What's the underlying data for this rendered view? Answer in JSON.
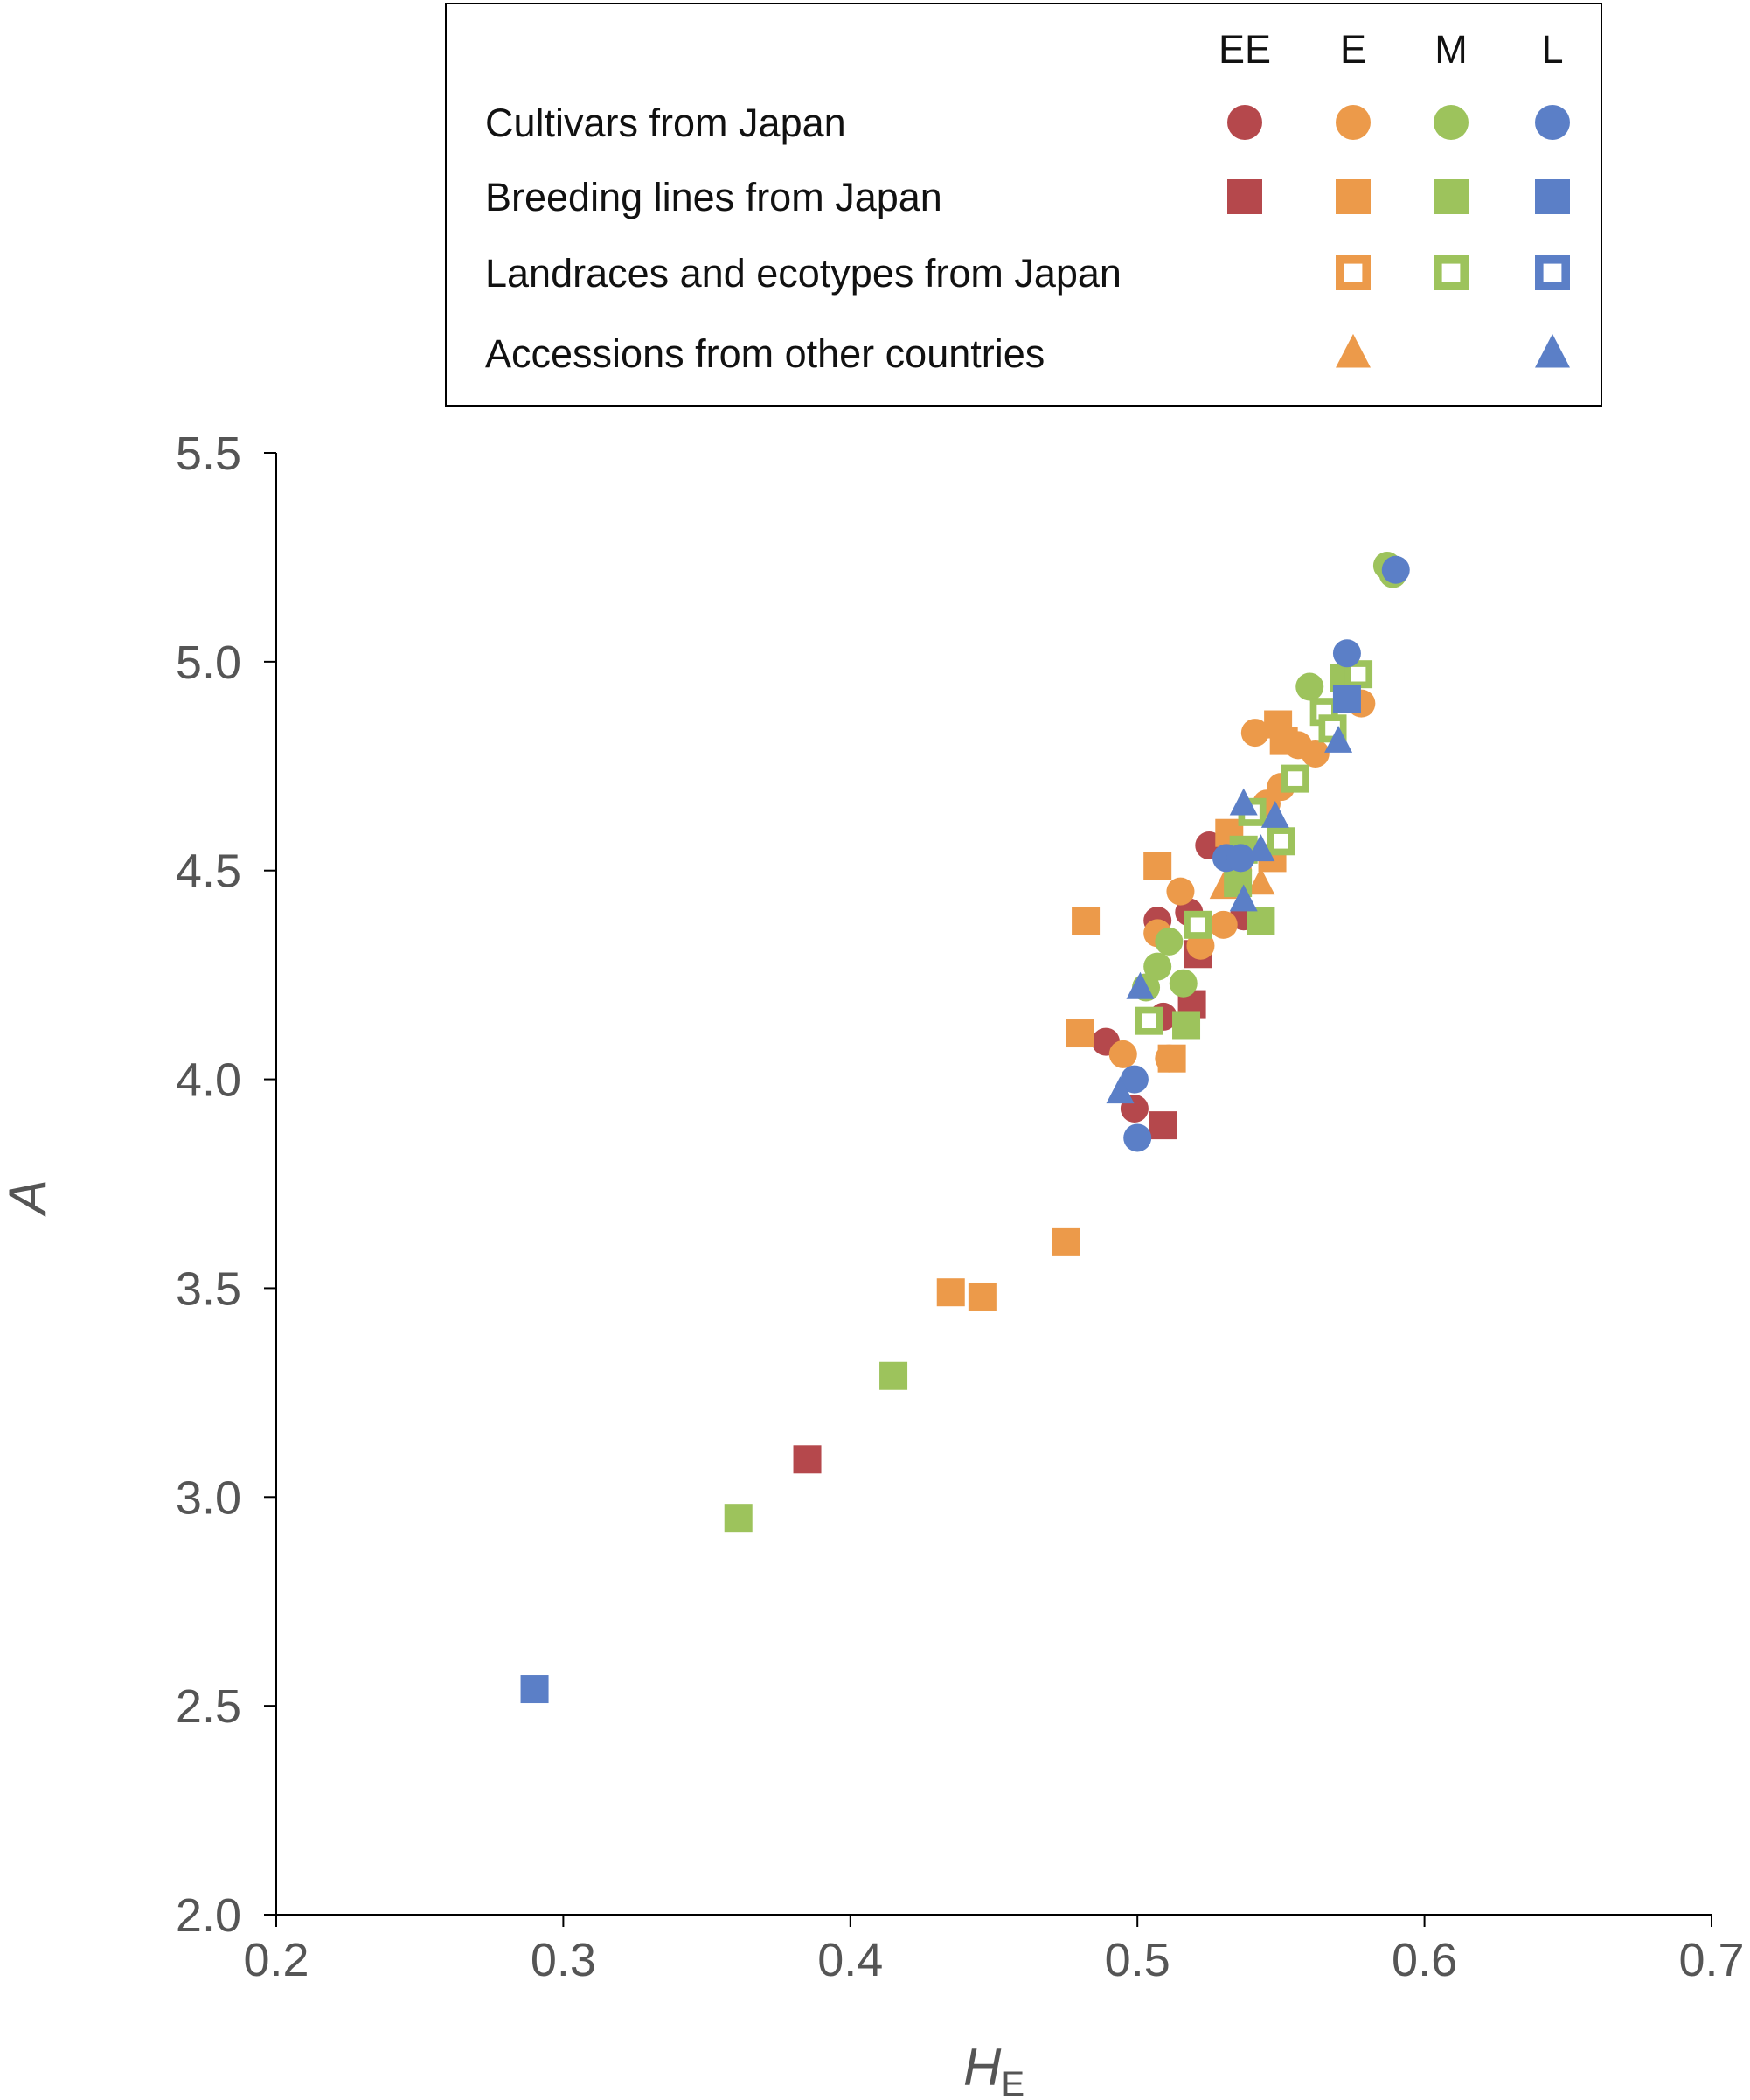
{
  "chart_data": {
    "type": "scatter",
    "xlabel": "H",
    "xlabel_subscript": "E",
    "ylabel": "A",
    "xlim": [
      0.2,
      0.7
    ],
    "ylim": [
      2.0,
      5.5
    ],
    "xticks": [
      "0.2",
      "0.3",
      "0.4",
      "0.5",
      "0.6",
      "0.7"
    ],
    "yticks": [
      "2.0",
      "2.5",
      "3.0",
      "3.5",
      "4.0",
      "4.5",
      "5.0",
      "5.5"
    ],
    "legend": {
      "placement": "top",
      "columns": [
        "EE",
        "E",
        "M",
        "L"
      ],
      "rows": [
        {
          "label": "Cultivars from Japan",
          "marker": "circle",
          "columns": [
            true,
            true,
            true,
            true
          ]
        },
        {
          "label": "Breeding lines from Japan",
          "marker": "square",
          "columns": [
            true,
            true,
            true,
            true
          ]
        },
        {
          "label": "Landraces and ecotypes from Japan",
          "marker": "open-square",
          "columns": [
            false,
            true,
            true,
            true
          ]
        },
        {
          "label": "Accessions from other countries",
          "marker": "triangle",
          "columns": [
            false,
            true,
            false,
            true
          ]
        }
      ]
    },
    "colors": {
      "EE": "#b5484c",
      "E": "#ec9a4a",
      "M": "#9dc35c",
      "L": "#5b7fc7"
    },
    "series": [
      {
        "group": "EE",
        "marker": "circle",
        "points": [
          [
            0.489,
            4.09
          ],
          [
            0.499,
            3.93
          ],
          [
            0.507,
            4.38
          ],
          [
            0.509,
            4.15
          ],
          [
            0.518,
            4.4
          ],
          [
            0.525,
            4.56
          ],
          [
            0.537,
            4.39
          ]
        ]
      },
      {
        "group": "EE",
        "marker": "square",
        "points": [
          [
            0.385,
            3.09
          ],
          [
            0.509,
            3.89
          ],
          [
            0.519,
            4.18
          ],
          [
            0.521,
            4.3
          ]
        ]
      },
      {
        "group": "E",
        "marker": "circle",
        "points": [
          [
            0.495,
            4.06
          ],
          [
            0.507,
            4.35
          ],
          [
            0.511,
            4.05
          ],
          [
            0.515,
            4.45
          ],
          [
            0.522,
            4.32
          ],
          [
            0.53,
            4.37
          ],
          [
            0.535,
            4.5
          ],
          [
            0.541,
            4.83
          ],
          [
            0.545,
            4.66
          ],
          [
            0.55,
            4.7
          ],
          [
            0.556,
            4.8
          ],
          [
            0.562,
            4.78
          ],
          [
            0.578,
            4.9
          ]
        ]
      },
      {
        "group": "E",
        "marker": "square",
        "points": [
          [
            0.435,
            3.49
          ],
          [
            0.446,
            3.48
          ],
          [
            0.475,
            3.61
          ],
          [
            0.482,
            4.38
          ],
          [
            0.48,
            4.11
          ],
          [
            0.507,
            4.51
          ],
          [
            0.512,
            4.05
          ],
          [
            0.532,
            4.59
          ],
          [
            0.549,
            4.85
          ],
          [
            0.551,
            4.81
          ],
          [
            0.547,
            4.53
          ]
        ]
      },
      {
        "group": "E",
        "marker": "triangle",
        "points": [
          [
            0.53,
            4.46
          ],
          [
            0.543,
            4.47
          ]
        ]
      },
      {
        "group": "M",
        "marker": "circle",
        "points": [
          [
            0.503,
            4.22
          ],
          [
            0.507,
            4.27
          ],
          [
            0.511,
            4.33
          ],
          [
            0.516,
            4.23
          ],
          [
            0.56,
            4.94
          ],
          [
            0.587,
            5.23
          ],
          [
            0.589,
            5.21
          ]
        ]
      },
      {
        "group": "M",
        "marker": "square",
        "points": [
          [
            0.361,
            2.95
          ],
          [
            0.415,
            3.29
          ],
          [
            0.517,
            4.13
          ],
          [
            0.535,
            4.47
          ],
          [
            0.537,
            4.55
          ],
          [
            0.543,
            4.38
          ],
          [
            0.572,
            4.96
          ]
        ]
      },
      {
        "group": "M",
        "marker": "open-square",
        "points": [
          [
            0.504,
            4.14
          ],
          [
            0.521,
            4.37
          ],
          [
            0.54,
            4.64
          ],
          [
            0.55,
            4.57
          ],
          [
            0.555,
            4.72
          ],
          [
            0.565,
            4.88
          ],
          [
            0.568,
            4.84
          ],
          [
            0.577,
            4.97
          ]
        ]
      },
      {
        "group": "L",
        "marker": "circle",
        "points": [
          [
            0.499,
            4.0
          ],
          [
            0.5,
            3.86
          ],
          [
            0.531,
            4.53
          ],
          [
            0.536,
            4.53
          ],
          [
            0.573,
            5.02
          ],
          [
            0.59,
            5.22
          ]
        ]
      },
      {
        "group": "L",
        "marker": "square",
        "points": [
          [
            0.29,
            2.54
          ],
          [
            0.573,
            4.91
          ]
        ]
      },
      {
        "group": "L",
        "marker": "triangle",
        "points": [
          [
            0.494,
            3.97
          ],
          [
            0.501,
            4.22
          ],
          [
            0.537,
            4.66
          ],
          [
            0.537,
            4.43
          ],
          [
            0.543,
            4.55
          ],
          [
            0.548,
            4.63
          ],
          [
            0.57,
            4.81
          ]
        ]
      }
    ]
  }
}
